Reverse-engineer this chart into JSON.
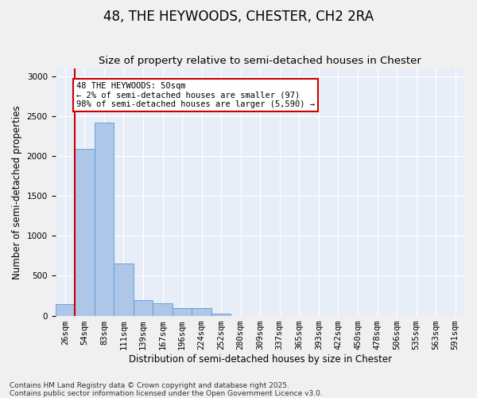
{
  "title": "48, THE HEYWOODS, CHESTER, CH2 2RA",
  "subtitle": "Size of property relative to semi-detached houses in Chester",
  "xlabel": "Distribution of semi-detached houses by size in Chester",
  "ylabel": "Number of semi-detached properties",
  "bins": [
    "26sqm",
    "54sqm",
    "83sqm",
    "111sqm",
    "139sqm",
    "167sqm",
    "196sqm",
    "224sqm",
    "252sqm",
    "280sqm",
    "309sqm",
    "337sqm",
    "365sqm",
    "393sqm",
    "422sqm",
    "450sqm",
    "478sqm",
    "506sqm",
    "535sqm",
    "563sqm",
    "591sqm"
  ],
  "values": [
    150,
    2090,
    2420,
    650,
    200,
    160,
    100,
    100,
    30,
    0,
    0,
    0,
    0,
    0,
    0,
    0,
    0,
    0,
    0,
    0,
    0
  ],
  "bar_color": "#aec6e8",
  "bar_edge_color": "#5b9bd5",
  "annotation_title": "48 THE HEYWOODS: 50sqm",
  "annotation_line1": "← 2% of semi-detached houses are smaller (97)",
  "annotation_line2": "98% of semi-detached houses are larger (5,590) →",
  "annotation_box_color": "#ffffff",
  "annotation_box_edge": "#cc0000",
  "vline_color": "#cc0000",
  "ylim": [
    0,
    3100
  ],
  "yticks": [
    0,
    500,
    1000,
    1500,
    2000,
    2500,
    3000
  ],
  "background_color": "#e8eef7",
  "fig_background_color": "#f0f0f0",
  "footer_line1": "Contains HM Land Registry data © Crown copyright and database right 2025.",
  "footer_line2": "Contains public sector information licensed under the Open Government Licence v3.0.",
  "title_fontsize": 12,
  "subtitle_fontsize": 9.5,
  "axis_label_fontsize": 8.5,
  "tick_fontsize": 7.5,
  "footer_fontsize": 6.5,
  "annotation_fontsize": 7.5
}
